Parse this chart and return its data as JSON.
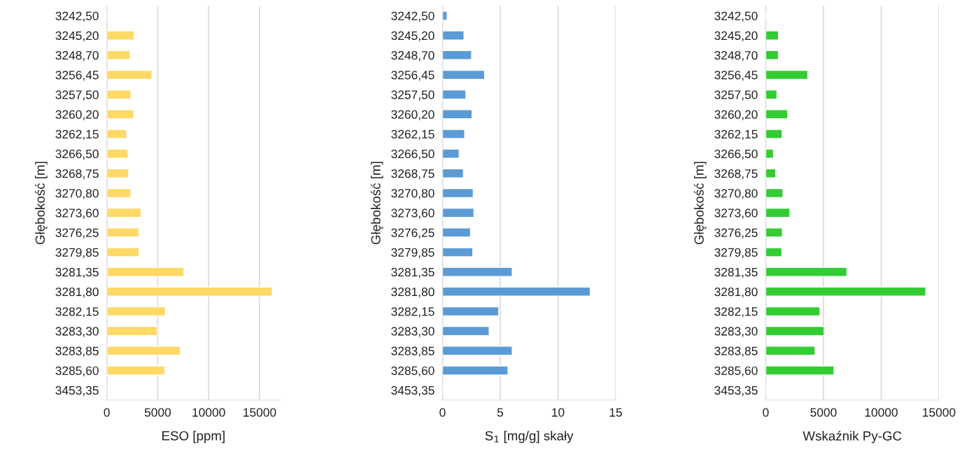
{
  "chart_data": [
    {
      "type": "bar",
      "orientation": "horizontal",
      "categories": [
        "3242,50",
        "3245,20",
        "3248,70",
        "3256,45",
        "3257,50",
        "3260,20",
        "3262,15",
        "3266,50",
        "3268,75",
        "3270,80",
        "3273,60",
        "3276,25",
        "3279,85",
        "3281,35",
        "3281,80",
        "3282,15",
        "3283,30",
        "3283,85",
        "3285,60",
        "3453,35"
      ],
      "values": [
        null,
        2700,
        2290,
        4430,
        2370,
        2650,
        1960,
        2090,
        2160,
        2370,
        3380,
        3170,
        3170,
        7580,
        16260,
        5750,
        4970,
        7220,
        5700,
        null
      ],
      "color": "#ffd966",
      "xlabel": "ESO [ppm]",
      "ylabel": "Głębokość [m]",
      "xlim": [
        0,
        17000
      ],
      "xticks": [
        0,
        5000,
        10000,
        15000
      ],
      "grid": "x",
      "legend": false
    },
    {
      "type": "bar",
      "orientation": "horizontal",
      "categories": [
        "3242,50",
        "3245,20",
        "3248,70",
        "3256,45",
        "3257,50",
        "3260,20",
        "3262,15",
        "3266,50",
        "3268,75",
        "3270,80",
        "3273,60",
        "3276,25",
        "3279,85",
        "3281,35",
        "3281,80",
        "3282,15",
        "3283,30",
        "3283,85",
        "3285,60",
        "3453,35"
      ],
      "values": [
        0.4,
        1.86,
        2.52,
        3.65,
        2.02,
        2.56,
        1.92,
        1.44,
        1.81,
        2.66,
        2.72,
        2.43,
        2.62,
        6.04,
        12.8,
        4.87,
        4.04,
        6.04,
        5.67,
        null
      ],
      "color": "#5b9bd5",
      "xlabel": "S$_{1}$ [mg/g] skały",
      "ylabel": "Głębokość [m]",
      "xlim": [
        0,
        15
      ],
      "xticks": [
        0,
        5,
        10,
        15
      ],
      "grid": "x",
      "legend": false
    },
    {
      "type": "bar",
      "orientation": "horizontal",
      "categories": [
        "3242,50",
        "3245,20",
        "3248,70",
        "3256,45",
        "3257,50",
        "3260,20",
        "3262,15",
        "3266,50",
        "3268,75",
        "3270,80",
        "3273,60",
        "3276,25",
        "3279,85",
        "3281,35",
        "3281,80",
        "3282,15",
        "3283,30",
        "3283,85",
        "3285,60",
        "3453,35"
      ],
      "values": [
        null,
        1100,
        1100,
        3640,
        970,
        1900,
        1420,
        670,
        860,
        1490,
        2090,
        1440,
        1400,
        7030,
        13860,
        4700,
        5060,
        4270,
        5910,
        null
      ],
      "color": "#33cc33",
      "xlabel": "Wskaźnik Py-GC",
      "ylabel": "Głębokość [m]",
      "xlim": [
        0,
        15000
      ],
      "xticks": [
        0,
        5000,
        10000,
        15000
      ],
      "grid": "x",
      "legend": false
    }
  ]
}
